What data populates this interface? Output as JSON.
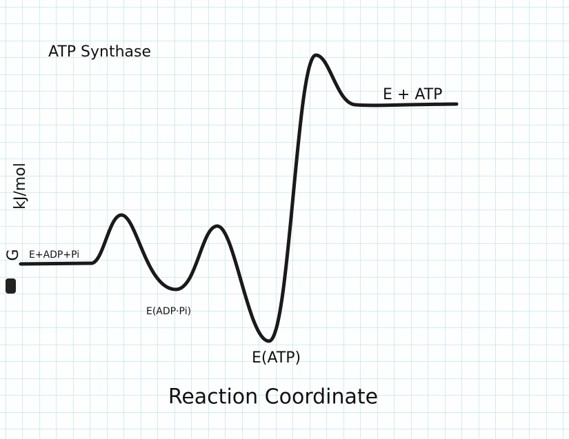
{
  "title": "ATP Synthase",
  "y_axis": {
    "symbol": "G",
    "unit": "kJ/mol"
  },
  "x_axis": {
    "label": "Reaction Coordinate"
  },
  "states": [
    {
      "label": "E+ADP+Pi"
    },
    {
      "label": "E(ADP·Pi)"
    },
    {
      "label": "E(ATP)"
    },
    {
      "label": "E + ATP"
    }
  ]
}
